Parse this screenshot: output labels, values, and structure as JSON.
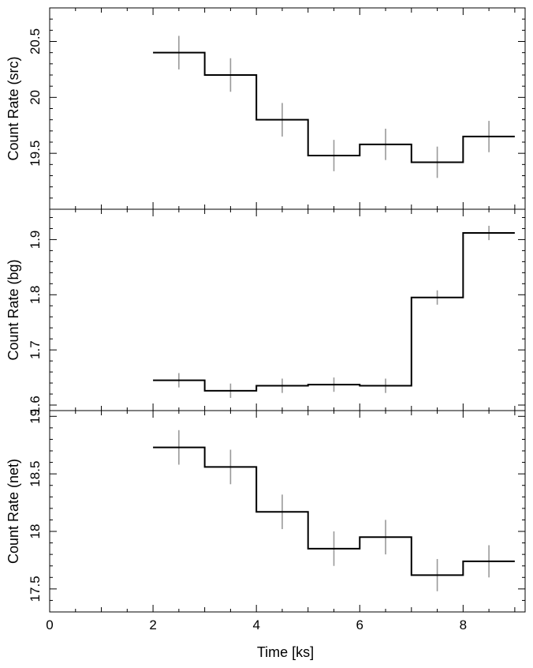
{
  "chart_data": [
    {
      "type": "line",
      "ylabel": "Count Rate (src)",
      "xlim": [
        0,
        9.2
      ],
      "ylim": [
        19.0,
        20.8
      ],
      "yticks": [
        "19.5",
        "20",
        "20.5"
      ],
      "ytick_values": [
        19.5,
        20.0,
        20.5
      ],
      "bins": [
        {
          "x0": 2,
          "x1": 3,
          "y": 20.4,
          "err": 0.15
        },
        {
          "x0": 3,
          "x1": 4,
          "y": 20.2,
          "err": 0.15
        },
        {
          "x0": 4,
          "x1": 5,
          "y": 19.8,
          "err": 0.15
        },
        {
          "x0": 5,
          "x1": 6,
          "y": 19.48,
          "err": 0.14
        },
        {
          "x0": 6,
          "x1": 7,
          "y": 19.58,
          "err": 0.14
        },
        {
          "x0": 7,
          "x1": 8,
          "y": 19.42,
          "err": 0.14
        },
        {
          "x0": 8,
          "x1": 9,
          "y": 19.65,
          "err": 0.14
        }
      ]
    },
    {
      "type": "line",
      "ylabel": "Count Rate (bg)",
      "xlim": [
        0,
        9.2
      ],
      "ylim": [
        1.59,
        1.955
      ],
      "yticks": [
        "1.6",
        "1.7",
        "1.8",
        "1.9"
      ],
      "ytick_values": [
        1.6,
        1.7,
        1.8,
        1.9
      ],
      "bins": [
        {
          "x0": 2,
          "x1": 3,
          "y": 1.645,
          "err": 0.013
        },
        {
          "x0": 3,
          "x1": 4,
          "y": 1.626,
          "err": 0.013
        },
        {
          "x0": 4,
          "x1": 5,
          "y": 1.635,
          "err": 0.013
        },
        {
          "x0": 5,
          "x1": 6,
          "y": 1.637,
          "err": 0.013
        },
        {
          "x0": 6,
          "x1": 7,
          "y": 1.635,
          "err": 0.013
        },
        {
          "x0": 7,
          "x1": 8,
          "y": 1.795,
          "err": 0.013
        },
        {
          "x0": 8,
          "x1": 9,
          "y": 1.912,
          "err": 0.013
        }
      ]
    },
    {
      "type": "line",
      "ylabel": "Count Rate (net)",
      "xlabel": "Time [ks]",
      "xlim": [
        0,
        9.2
      ],
      "ylim": [
        17.3,
        19.05
      ],
      "yticks": [
        "17.5",
        "18",
        "18.5",
        "19"
      ],
      "ytick_values": [
        17.5,
        18.0,
        18.5,
        19.0
      ],
      "xticks": [
        "0",
        "2",
        "4",
        "6",
        "8"
      ],
      "xtick_values": [
        0,
        2,
        4,
        6,
        8
      ],
      "bins": [
        {
          "x0": 2,
          "x1": 3,
          "y": 18.73,
          "err": 0.15
        },
        {
          "x0": 3,
          "x1": 4,
          "y": 18.56,
          "err": 0.15
        },
        {
          "x0": 4,
          "x1": 5,
          "y": 18.17,
          "err": 0.15
        },
        {
          "x0": 5,
          "x1": 6,
          "y": 17.85,
          "err": 0.15
        },
        {
          "x0": 6,
          "x1": 7,
          "y": 17.95,
          "err": 0.15
        },
        {
          "x0": 7,
          "x1": 8,
          "y": 17.62,
          "err": 0.14
        },
        {
          "x0": 8,
          "x1": 9,
          "y": 17.74,
          "err": 0.14
        }
      ]
    }
  ],
  "colors": {
    "step_line": "#000000",
    "error_bar": "#999999",
    "frame": "#000000"
  }
}
